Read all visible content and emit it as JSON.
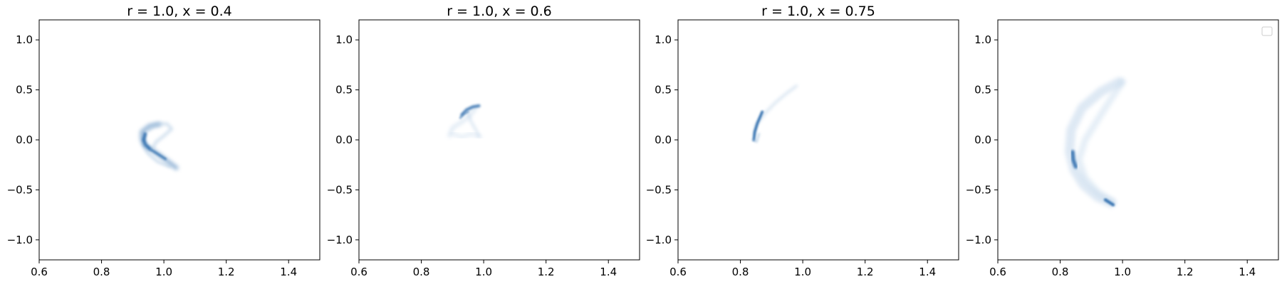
{
  "chart_data": [
    {
      "type": "heatmap",
      "title": "r = 1.0, x = 0.4",
      "xlim": [
        0.6,
        1.5
      ],
      "ylim": [
        -1.2,
        1.2
      ],
      "xticks": [
        "0.6",
        "0.8",
        "1.0",
        "1.2",
        "1.4"
      ],
      "yticks": [
        "1.0",
        "0.5",
        "0.0",
        "−0.5",
        "−1.0"
      ],
      "colormap": "Blues",
      "grid": false,
      "density_traces": [
        {
          "points": [
            [
              0.985,
              0.155
            ],
            [
              0.955,
              0.14
            ],
            [
              0.93,
              0.08
            ],
            [
              0.93,
              0.0
            ],
            [
              0.945,
              -0.07
            ],
            [
              0.98,
              -0.14
            ],
            [
              1.01,
              -0.21
            ],
            [
              1.04,
              -0.28
            ]
          ],
          "width": 0.014,
          "intensity": 0.55,
          "blur": 3
        },
        {
          "points": [
            [
              0.94,
              0.06
            ],
            [
              0.935,
              0.0
            ],
            [
              0.94,
              -0.05
            ],
            [
              0.955,
              -0.09
            ]
          ],
          "width": 0.011,
          "intensity": 0.85,
          "blur": 1.5
        },
        {
          "points": [
            [
              0.96,
              -0.1
            ],
            [
              0.985,
              -0.15
            ],
            [
              1.005,
              -0.19
            ]
          ],
          "width": 0.008,
          "intensity": 0.75,
          "blur": 1.2
        },
        {
          "points": [
            [
              0.95,
              0.1
            ],
            [
              0.975,
              0.16
            ],
            [
              1.01,
              0.16
            ],
            [
              1.025,
              0.11
            ],
            [
              1.0,
              0.04
            ],
            [
              0.975,
              -0.02
            ],
            [
              0.965,
              -0.08
            ]
          ],
          "width": 0.01,
          "intensity": 0.25,
          "blur": 2.5
        },
        {
          "points": [
            [
              0.93,
              -0.04
            ],
            [
              0.95,
              -0.14
            ],
            [
              0.98,
              -0.22
            ],
            [
              1.02,
              -0.27
            ]
          ],
          "width": 0.008,
          "intensity": 0.3,
          "blur": 2
        }
      ]
    },
    {
      "type": "heatmap",
      "title": "r = 1.0, x = 0.6",
      "xlim": [
        0.6,
        1.5
      ],
      "ylim": [
        -1.2,
        1.2
      ],
      "xticks": [
        "0.6",
        "0.8",
        "1.0",
        "1.2",
        "1.4"
      ],
      "yticks": [
        "1.0",
        "0.5",
        "0.0",
        "−0.5",
        "−1.0"
      ],
      "colormap": "Blues",
      "grid": false,
      "density_traces": [
        {
          "points": [
            [
              0.89,
              0.04
            ],
            [
              0.9,
              0.12
            ],
            [
              0.93,
              0.18
            ],
            [
              0.955,
              0.24
            ],
            [
              0.975,
              0.32
            ]
          ],
          "width": 0.01,
          "intensity": 0.2,
          "blur": 3
        },
        {
          "points": [
            [
              0.93,
              0.25
            ],
            [
              0.945,
              0.3
            ],
            [
              0.965,
              0.33
            ],
            [
              0.985,
              0.34
            ]
          ],
          "width": 0.009,
          "intensity": 0.85,
          "blur": 1.5
        },
        {
          "points": [
            [
              0.925,
              0.22
            ],
            [
              0.935,
              0.26
            ],
            [
              0.95,
              0.28
            ]
          ],
          "width": 0.007,
          "intensity": 0.6,
          "blur": 1.2
        },
        {
          "points": [
            [
              0.9,
              0.06
            ],
            [
              0.93,
              0.03
            ],
            [
              0.96,
              0.06
            ],
            [
              0.99,
              0.03
            ]
          ],
          "width": 0.01,
          "intensity": 0.15,
          "blur": 3
        },
        {
          "points": [
            [
              0.95,
              0.26
            ],
            [
              0.96,
              0.18
            ],
            [
              0.975,
              0.1
            ],
            [
              0.985,
              0.04
            ]
          ],
          "width": 0.008,
          "intensity": 0.2,
          "blur": 2.5
        }
      ]
    },
    {
      "type": "heatmap",
      "title": "r = 1.0, x = 0.75",
      "xlim": [
        0.6,
        1.5
      ],
      "ylim": [
        -1.2,
        1.2
      ],
      "xticks": [
        "0.6",
        "0.8",
        "1.0",
        "1.2",
        "1.4"
      ],
      "yticks": [
        "1.0",
        "0.5",
        "0.0",
        "−0.5",
        "−1.0"
      ],
      "colormap": "Blues",
      "grid": false,
      "density_traces": [
        {
          "points": [
            [
              0.845,
              0.05
            ],
            [
              0.85,
              0.15
            ],
            [
              0.88,
              0.27
            ],
            [
              0.915,
              0.38
            ],
            [
              0.95,
              0.47
            ],
            [
              0.98,
              0.54
            ]
          ],
          "width": 0.008,
          "intensity": 0.22,
          "blur": 2.5
        },
        {
          "points": [
            [
              0.843,
              0.0
            ],
            [
              0.846,
              0.08
            ],
            [
              0.855,
              0.17
            ],
            [
              0.87,
              0.28
            ]
          ],
          "width": 0.009,
          "intensity": 0.85,
          "blur": 1.4
        },
        {
          "points": [
            [
              0.84,
              0.0
            ],
            [
              0.852,
              -0.02
            ],
            [
              0.86,
              0.06
            ]
          ],
          "width": 0.006,
          "intensity": 0.35,
          "blur": 1.5
        }
      ]
    },
    {
      "type": "heatmap",
      "title": "",
      "xlim": [
        0.6,
        1.5
      ],
      "ylim": [
        -1.2,
        1.2
      ],
      "xticks": [
        "0.6",
        "0.8",
        "1.0",
        "1.2",
        "1.4"
      ],
      "yticks": [
        "1.0",
        "0.5",
        "0.0",
        "−0.5",
        "−1.0"
      ],
      "colormap": "Blues",
      "grid": false,
      "legend": {
        "placement": "top-right",
        "entries": []
      },
      "density_traces": [
        {
          "points": [
            [
              0.99,
              0.58
            ],
            [
              0.93,
              0.48
            ],
            [
              0.87,
              0.32
            ],
            [
              0.835,
              0.1
            ],
            [
              0.83,
              -0.12
            ],
            [
              0.845,
              -0.3
            ],
            [
              0.875,
              -0.45
            ],
            [
              0.92,
              -0.57
            ],
            [
              0.965,
              -0.63
            ]
          ],
          "width": 0.03,
          "intensity": 0.18,
          "blur": 3
        },
        {
          "points": [
            [
              1.0,
              0.58
            ],
            [
              0.965,
              0.42
            ],
            [
              0.92,
              0.2
            ],
            [
              0.88,
              0.0
            ],
            [
              0.86,
              -0.2
            ],
            [
              0.88,
              -0.38
            ],
            [
              0.92,
              -0.52
            ],
            [
              0.965,
              -0.62
            ]
          ],
          "width": 0.022,
          "intensity": 0.12,
          "blur": 3
        },
        {
          "points": [
            [
              0.84,
              -0.12
            ],
            [
              0.842,
              -0.2
            ],
            [
              0.85,
              -0.27
            ]
          ],
          "width": 0.012,
          "intensity": 0.85,
          "blur": 1.5
        },
        {
          "points": [
            [
              0.945,
              -0.6
            ],
            [
              0.96,
              -0.63
            ],
            [
              0.97,
              -0.65
            ]
          ],
          "width": 0.01,
          "intensity": 0.85,
          "blur": 1.3
        }
      ]
    }
  ]
}
